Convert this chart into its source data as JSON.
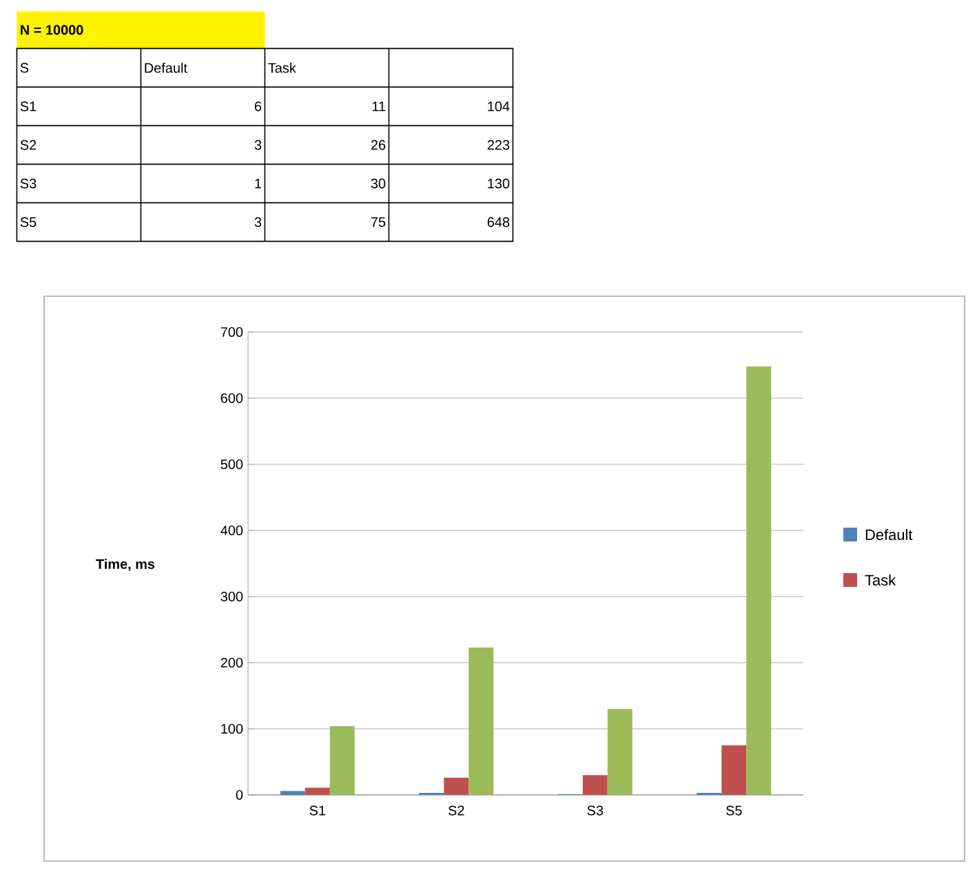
{
  "chart_data": [
    {
      "type": "other",
      "title": "N = 10000",
      "annotations": [
        "S",
        "Default",
        "Task",
        "S1",
        "6",
        "11",
        "104",
        "S2",
        "3",
        "26",
        "223",
        "S3",
        "1",
        "30",
        "130",
        "S5",
        "3",
        "75",
        "648"
      ]
    },
    {
      "type": "bar",
      "ylabel": "Time, ms",
      "categories": [
        "S1",
        "S2",
        "S3",
        "S5"
      ],
      "series": [
        {
          "name": "Default",
          "color": "#4f81bd",
          "values": [
            6,
            3,
            1,
            3
          ]
        },
        {
          "name": "Task",
          "color": "#c0504d",
          "values": [
            11,
            26,
            30,
            75
          ]
        },
        {
          "color": "#9bbb59",
          "values": [
            104,
            223,
            130,
            648
          ]
        }
      ],
      "ylim": [
        0,
        700
      ],
      "yticks": [
        0,
        100,
        200,
        300,
        400,
        500,
        600,
        700
      ],
      "grid": "y",
      "legend": "right"
    }
  ]
}
